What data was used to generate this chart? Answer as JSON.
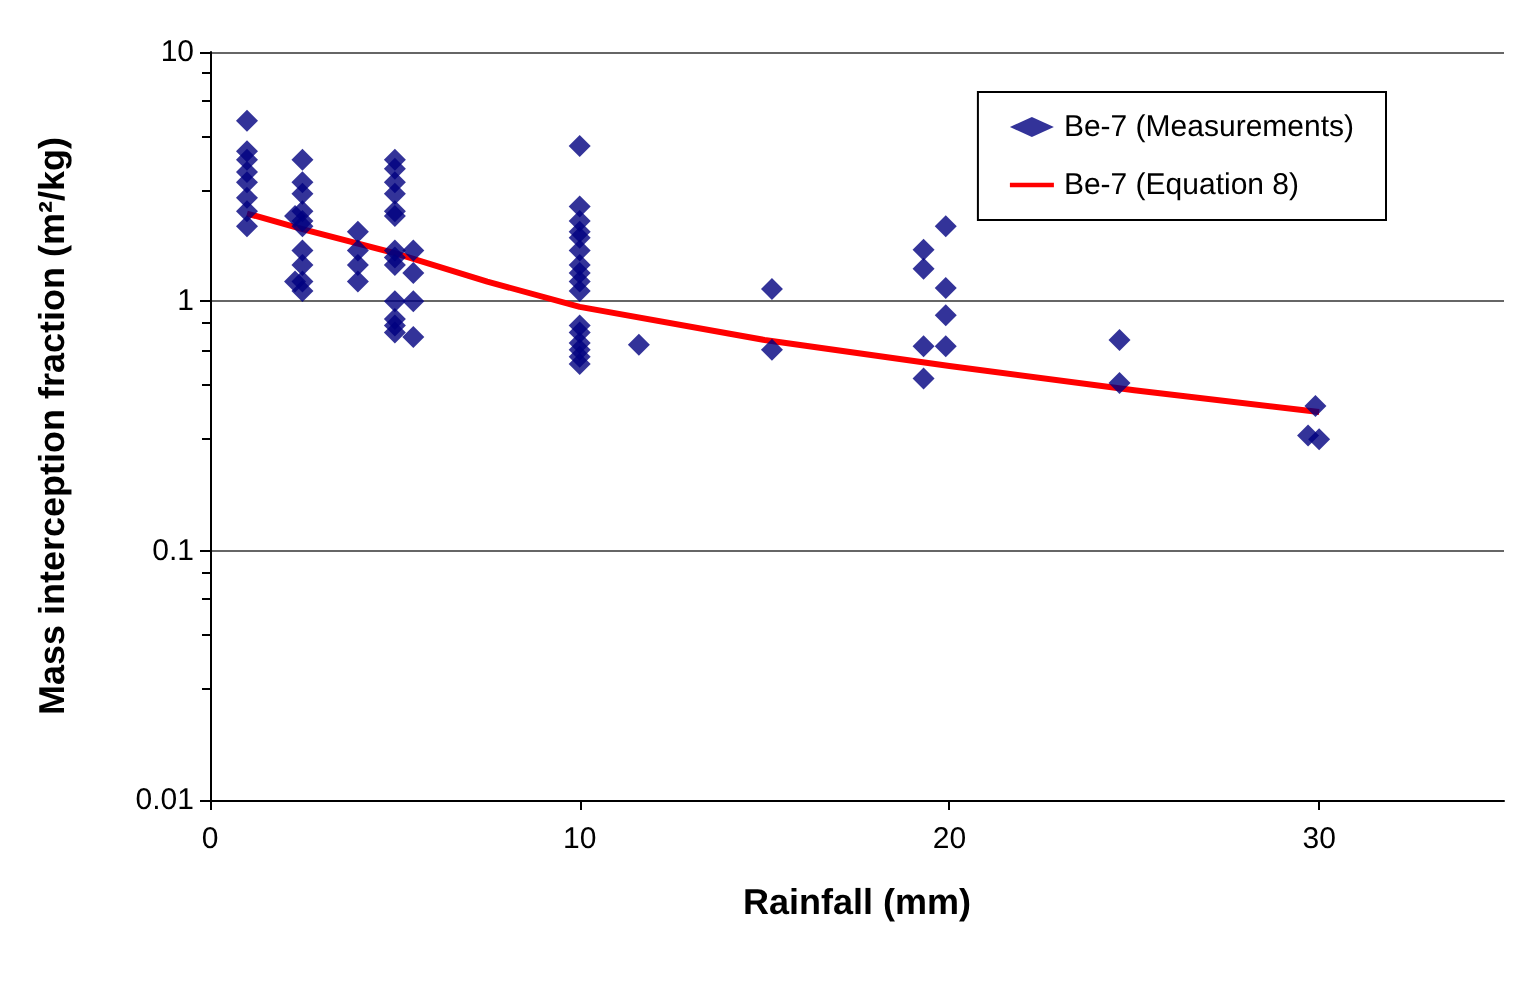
{
  "chart_data": {
    "type": "scatter",
    "xlabel": "Rainfall (mm)",
    "ylabel": "Mass interception fraction (m²/kg)",
    "xlim": [
      0,
      35
    ],
    "xticks": [
      0,
      10,
      20,
      30
    ],
    "ylim": [
      0.01,
      10
    ],
    "yticks": [
      0.01,
      0.1,
      1,
      10
    ],
    "log": "y",
    "grid": "y",
    "legend": "top right",
    "marker": "diamond",
    "series": [
      {
        "name": "Be-7 (Measurements)",
        "color": "#000080",
        "x": [
          1,
          1,
          1,
          1,
          1,
          1,
          1,
          1,
          2.5,
          2.5,
          2.5,
          2.5,
          2.5,
          2.5,
          2.5,
          2.5,
          2.5,
          2.5,
          2.3,
          2.3,
          4,
          4,
          4,
          4,
          5,
          5,
          5,
          5,
          5,
          5,
          5,
          5,
          5,
          5,
          5,
          5,
          5,
          5.5,
          5.5,
          5.5,
          5.5,
          10,
          10,
          10,
          10,
          10,
          10,
          10,
          10,
          10,
          10,
          10,
          10,
          10,
          10,
          10,
          10,
          11.6,
          15.2,
          15.2,
          19.3,
          19.3,
          19.3,
          19.3,
          19.9,
          19.9,
          19.9,
          19.9,
          24.6,
          24.6,
          29.9,
          29.7,
          30
        ],
        "values": [
          5.3,
          4.0,
          3.7,
          3.3,
          3.0,
          2.6,
          2.3,
          2.0,
          3.7,
          3.0,
          2.7,
          2.3,
          2.1,
          2.0,
          1.6,
          1.4,
          1.2,
          1.1,
          2.2,
          1.2,
          1.9,
          1.6,
          1.4,
          1.2,
          3.7,
          3.4,
          3.0,
          2.7,
          2.3,
          2.2,
          1.6,
          1.5,
          1.4,
          1.0,
          0.85,
          0.8,
          0.75,
          1.6,
          1.3,
          1.0,
          0.72,
          4.2,
          2.4,
          2.1,
          1.9,
          1.8,
          1.6,
          1.4,
          1.3,
          1.2,
          1.1,
          0.8,
          0.75,
          0.68,
          0.64,
          0.6,
          0.56,
          0.67,
          1.12,
          0.64,
          1.61,
          1.35,
          0.66,
          0.49,
          2.0,
          1.13,
          0.88,
          0.66,
          0.7,
          0.47,
          0.38,
          0.29,
          0.28
        ]
      },
      {
        "name": "Be-7 (Equation 8)",
        "color": "#ff0000",
        "type": "line",
        "marker": "none",
        "x": [
          1,
          2.5,
          5,
          7.5,
          10,
          15,
          20,
          25,
          30
        ],
        "values": [
          2.25,
          1.95,
          1.56,
          1.2,
          0.95,
          0.7,
          0.55,
          0.44,
          0.36
        ]
      }
    ]
  }
}
